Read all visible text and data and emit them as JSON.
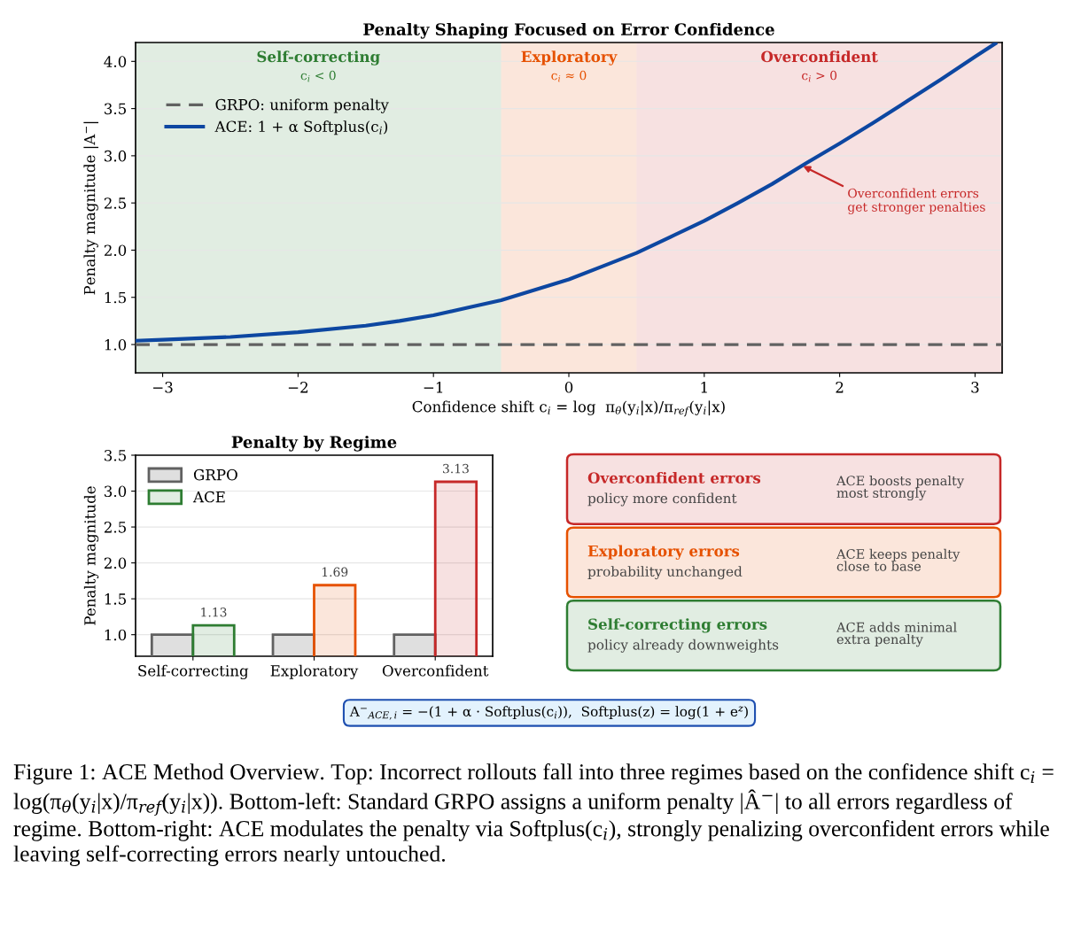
{
  "chart_data": [
    {
      "type": "line",
      "title": "Penalty Shaping Focused on Error Confidence",
      "xlabel": "Confidence shift c$_{i}$ = log  π$_{θ}$(y$_{i}$|x)/π$_{ref}$(y$_{i}$|x)",
      "ylabel": "Penalty magnitude |A$^{−}$|",
      "xlim": [
        -3.2,
        3.2
      ],
      "ylim": [
        0.7,
        4.2
      ],
      "xticks": [
        {
          "value": -3,
          "label": "−3"
        },
        {
          "value": -2,
          "label": "−2"
        },
        {
          "value": -1,
          "label": "−1"
        },
        0,
        1,
        2,
        3
      ],
      "yticks": [
        {
          "value": 1,
          "label": "1.0"
        },
        1.5,
        {
          "value": 2,
          "label": "2.0"
        },
        2.5,
        {
          "value": 3,
          "label": "3.0"
        },
        3.5,
        {
          "value": 4,
          "label": "4.0"
        }
      ],
      "grid": "y",
      "legend": "top left",
      "series": [
        {
          "name": "GRPO: uniform penalty",
          "color": "#616161",
          "line_style": "dashed",
          "x": [
            -3.2,
            3.2
          ],
          "values": [
            1.0,
            1.0
          ]
        },
        {
          "name": "ACE: 1 + α Softplus(c$_{i}$)",
          "color": "#0d47a1",
          "line_style": "solid",
          "x": [
            -3.2,
            -3,
            -2.5,
            -2,
            -1.5,
            -1.25,
            -1,
            -0.75,
            -0.5,
            -0.25,
            0,
            0.25,
            0.5,
            0.75,
            1,
            1.25,
            1.5,
            1.75,
            2,
            2.25,
            2.5,
            2.75,
            3,
            3.15
          ],
          "values": [
            1.04,
            1.05,
            1.08,
            1.13,
            1.2,
            1.25,
            1.31,
            1.39,
            1.47,
            1.58,
            1.69,
            1.83,
            1.97,
            2.14,
            2.31,
            2.5,
            2.7,
            2.92,
            3.13,
            3.35,
            3.58,
            3.81,
            4.05,
            4.19
          ]
        }
      ],
      "bands": [
        {
          "axis": "x",
          "from": -3.2,
          "to": -0.5,
          "label": "Self-correcting\nc$_{i}$ < 0",
          "color": "#2e7d32"
        },
        {
          "axis": "x",
          "from": -0.5,
          "to": 0.5,
          "label": "Exploratory\nc$_{i}$ ≈ 0",
          "color": "#e65100"
        },
        {
          "axis": "x",
          "from": 0.5,
          "to": 3.2,
          "label": "Overconfident\nc$_{i}$ > 0",
          "color": "#c62828"
        }
      ],
      "annotations": [
        {
          "text": "Overconfident errors\nget stronger penalties",
          "x": 1.73,
          "y": 2.89
        }
      ]
    },
    {
      "type": "bar",
      "title": "Penalty by Regime",
      "ylabel": "Penalty magnitude",
      "categories": [
        "Self-correcting",
        "Exploratory",
        "Overconfident"
      ],
      "ylim": [
        0.7,
        3.5
      ],
      "yticks": [
        {
          "value": 1,
          "label": "1.0"
        },
        1.5,
        {
          "value": 2,
          "label": "2.0"
        },
        2.5,
        {
          "value": 3,
          "label": "3.0"
        },
        3.5
      ],
      "grid": "y",
      "legend": "top left",
      "series": [
        {
          "name": "GRPO",
          "color": "#616161",
          "values": [
            1.0,
            1.0,
            1.0
          ]
        },
        {
          "name": "ACE",
          "color": "#2e7d32",
          "colors": [
            "#2e7d32",
            "#e65100",
            "#c62828"
          ],
          "values": [
            1.13,
            1.69,
            3.13
          ],
          "value_labels": [
            "1.13",
            "1.69",
            "3.13"
          ]
        }
      ]
    },
    {
      "type": "other",
      "colors": [
        "#c62828",
        "#e65100",
        "#2e7d32"
      ],
      "annotations": [
        "Overconfident errors",
        "policy more confident",
        "ACE boosts penalty\nmost strongly",
        "Exploratory errors",
        "probability unchanged",
        "ACE keeps penalty\nclose to base",
        "Self-correcting errors",
        "policy already downweights",
        "ACE adds minimal\nextra penalty",
        "A$^{−}$$_{ACE,i}$ = −(1 + α · Softplus(c$_{i}$)),  Softplus(z) = log(1 + e$^{z}$)",
        "Figure 1: ACE Method Overview. Top: Incorrect rollouts fall into three regimes based on the confidence shift c$_{i}$ = log(π$_{θ}$(y$_{i}$|x)/π$_{ref}$(y$_{i}$|x)). Bottom-left: Standard GRPO assigns a uniform penalty |Â$^{−}$| to all errors regardless of regime. Bottom-right: ACE modulates the penalty via Softplus(c$_{i}$), strongly penalizing overconfident errors while leaving self-correcting errors nearly untouched."
      ]
    }
  ]
}
